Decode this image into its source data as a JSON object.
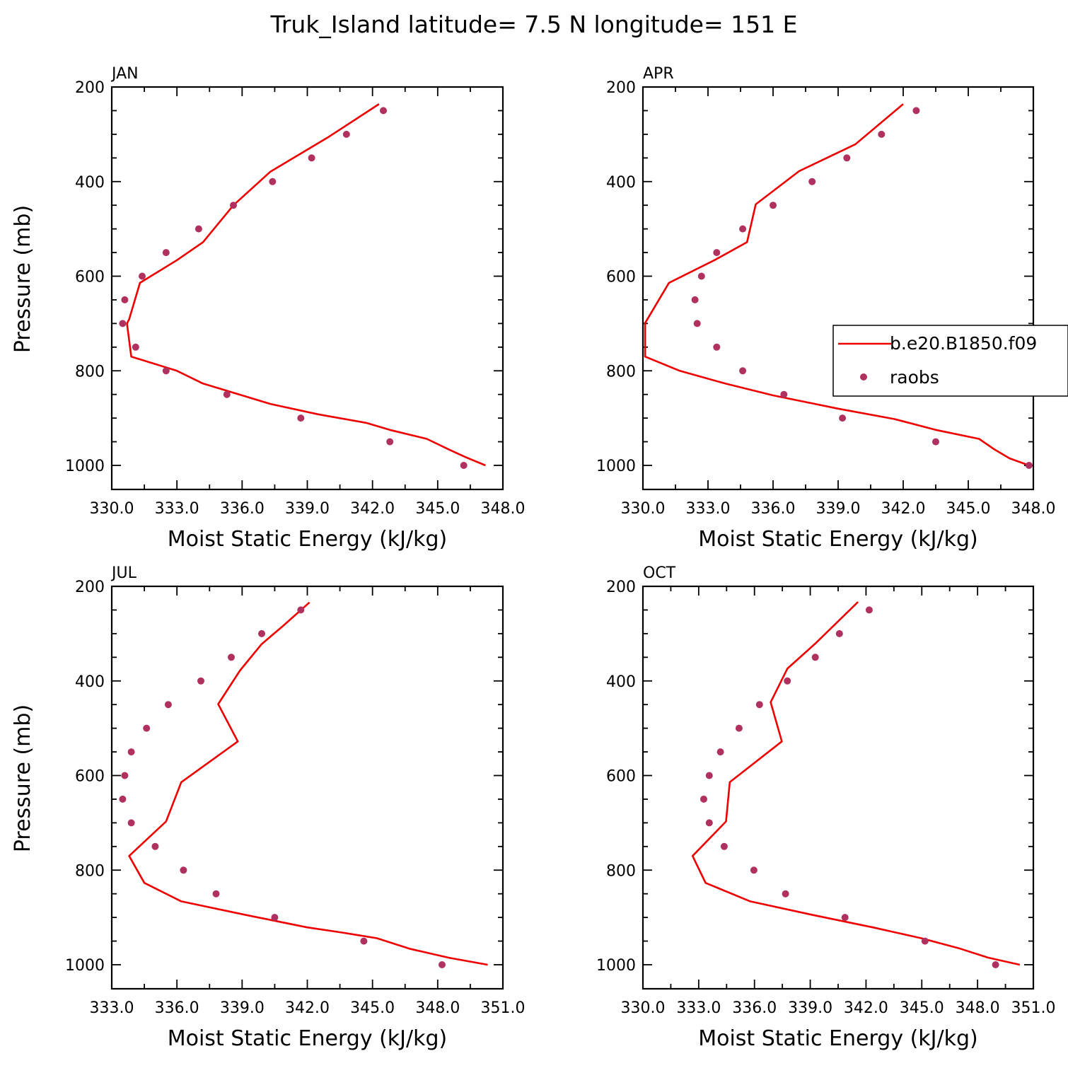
{
  "title": "Truk_Island  latitude= 7.5 N longitude= 151 E",
  "legend": {
    "model_label": "b.e20.B1850.f09",
    "obs_label": "raobs",
    "model_color": "#ee0000",
    "obs_color": "#b03060",
    "placement": "right, inside APR panel"
  },
  "chart_data": [
    {
      "type": "line",
      "panel": "JAN",
      "xlabel": "Moist Static Energy (kJ/kg)",
      "ylabel": "Pressure (mb)",
      "xlim": [
        330,
        348
      ],
      "ylim": [
        1000,
        200
      ],
      "xticks": [
        330,
        333,
        336,
        339,
        342,
        345,
        348
      ],
      "xtick_labels": [
        "330.0",
        "333.0",
        "336.0",
        "339.0",
        "342.0",
        "345.0",
        "348.0"
      ],
      "yticks": [
        200,
        400,
        600,
        800,
        1000
      ],
      "ytick_labels": [
        "200",
        "400",
        "600",
        "800",
        "1000"
      ],
      "series": [
        {
          "name": "b.e20.B1850.f09",
          "style": "line",
          "x": [
            342.3,
            340.0,
            337.3,
            335.6,
            334.2,
            333.0,
            331.3,
            330.8,
            330.7,
            330.9,
            333.0,
            334.2,
            337.3,
            339.5,
            341.7,
            342.8,
            344.5,
            345.5,
            346.3,
            347.2
          ],
          "y": [
            236,
            305,
            379,
            450,
            528,
            566,
            614,
            691,
            700,
            770,
            800,
            827,
            870,
            892,
            910,
            925,
            944,
            966,
            983,
            1000
          ]
        },
        {
          "name": "raobs",
          "style": "markers",
          "x": [
            342.5,
            340.8,
            339.2,
            337.4,
            335.6,
            334.0,
            332.5,
            331.4,
            330.6,
            330.5,
            331.1,
            332.5,
            335.3,
            338.7,
            342.8,
            346.2
          ],
          "y": [
            250,
            300,
            350,
            400,
            450,
            500,
            550,
            600,
            650,
            700,
            750,
            800,
            850,
            900,
            950,
            1000
          ]
        }
      ]
    },
    {
      "type": "line",
      "panel": "APR",
      "xlabel": "Moist Static Energy (kJ/kg)",
      "ylabel": "",
      "xlim": [
        330,
        348
      ],
      "ylim": [
        1000,
        200
      ],
      "xticks": [
        330,
        333,
        336,
        339,
        342,
        345,
        348
      ],
      "xtick_labels": [
        "330.0",
        "333.0",
        "336.0",
        "339.0",
        "342.0",
        "345.0",
        "348.0"
      ],
      "yticks": [
        200,
        400,
        600,
        800,
        1000
      ],
      "ytick_labels": [
        "200",
        "400",
        "600",
        "800",
        "1000"
      ],
      "series": [
        {
          "name": "b.e20.B1850.f09",
          "style": "line",
          "x": [
            342.0,
            339.8,
            337.2,
            335.2,
            334.8,
            333.3,
            331.2,
            330.1,
            330.1,
            331.7,
            333.8,
            336.0,
            339.0,
            341.6,
            343.5,
            345.5,
            346.2,
            346.9,
            347.8
          ],
          "y": [
            236,
            321,
            378,
            448,
            528,
            566,
            614,
            699,
            770,
            800,
            827,
            852,
            880,
            902,
            925,
            944,
            966,
            985,
            1000
          ]
        },
        {
          "name": "raobs",
          "style": "markers",
          "x": [
            342.6,
            341.0,
            339.4,
            337.8,
            336.0,
            334.6,
            333.4,
            332.7,
            332.4,
            332.5,
            333.4,
            334.6,
            336.5,
            339.2,
            343.5,
            347.8
          ],
          "y": [
            250,
            300,
            350,
            400,
            450,
            500,
            550,
            600,
            650,
            700,
            750,
            800,
            850,
            900,
            950,
            1000
          ]
        }
      ]
    },
    {
      "type": "line",
      "panel": "JUL",
      "xlabel": "Moist Static Energy (kJ/kg)",
      "ylabel": "Pressure (mb)",
      "xlim": [
        333,
        351
      ],
      "ylim": [
        1000,
        200
      ],
      "xticks": [
        333,
        336,
        339,
        342,
        345,
        348,
        351
      ],
      "xtick_labels": [
        "333.0",
        "336.0",
        "339.0",
        "342.0",
        "345.0",
        "348.0",
        "351.0"
      ],
      "yticks": [
        200,
        400,
        600,
        800,
        1000
      ],
      "ytick_labels": [
        "200",
        "400",
        "600",
        "800",
        "1000"
      ],
      "series": [
        {
          "name": "b.e20.B1850.f09",
          "style": "line",
          "x": [
            342.1,
            340.9,
            339.9,
            338.9,
            337.9,
            338.8,
            336.2,
            335.5,
            333.8,
            334.5,
            336.2,
            339.2,
            342.0,
            343.6,
            345.2,
            346.7,
            348.5,
            350.3
          ],
          "y": [
            234,
            283,
            322,
            378,
            449,
            528,
            614,
            697,
            770,
            827,
            866,
            895,
            921,
            932,
            944,
            966,
            985,
            1000
          ]
        },
        {
          "name": "raobs",
          "style": "markers",
          "x": [
            341.7,
            339.9,
            338.5,
            337.1,
            335.6,
            334.6,
            333.9,
            333.6,
            333.5,
            333.9,
            335.0,
            336.3,
            337.8,
            340.5,
            344.6,
            348.2
          ],
          "y": [
            250,
            300,
            350,
            400,
            450,
            500,
            550,
            600,
            650,
            700,
            750,
            800,
            850,
            900,
            950,
            1000
          ]
        }
      ]
    },
    {
      "type": "line",
      "panel": "OCT",
      "xlabel": "Moist Static Energy (kJ/kg)",
      "ylabel": "",
      "xlim": [
        330.03,
        351.03
      ],
      "ylim": [
        1000,
        200
      ],
      "xticks": [
        330.03,
        333.03,
        336.03,
        339.03,
        342.03,
        345.03,
        348.03,
        351.03
      ],
      "xtick_labels": [
        "330.0",
        "333.0",
        "336.0",
        "339.0",
        "342.0",
        "345.0",
        "348.0",
        "351.0"
      ],
      "xtick_labels_run_together": "330.0333.0336.0339.0342.0345.0348.0351.0",
      "yticks": [
        200,
        400,
        600,
        800,
        1000
      ],
      "ytick_labels": [
        "200",
        "400",
        "600",
        "800",
        "1000"
      ],
      "series": [
        {
          "name": "b.e20.B1850.f09",
          "style": "line",
          "x": [
            341.6,
            339.3,
            337.8,
            336.9,
            337.5,
            334.7,
            334.5,
            332.7,
            333.4,
            335.8,
            339.2,
            342.4,
            345.0,
            347.1,
            348.6,
            350.3
          ],
          "y": [
            233,
            321,
            374,
            445,
            528,
            614,
            697,
            770,
            827,
            866,
            895,
            921,
            944,
            966,
            985,
            1000
          ]
        },
        {
          "name": "raobs",
          "style": "markers",
          "x": [
            342.2,
            340.6,
            339.3,
            337.8,
            336.3,
            335.2,
            334.2,
            333.6,
            333.3,
            333.6,
            334.4,
            336.0,
            337.7,
            340.9,
            345.2,
            349.0
          ],
          "y": [
            250,
            300,
            350,
            400,
            450,
            500,
            550,
            600,
            650,
            700,
            750,
            800,
            850,
            900,
            950,
            1000
          ]
        }
      ]
    }
  ]
}
